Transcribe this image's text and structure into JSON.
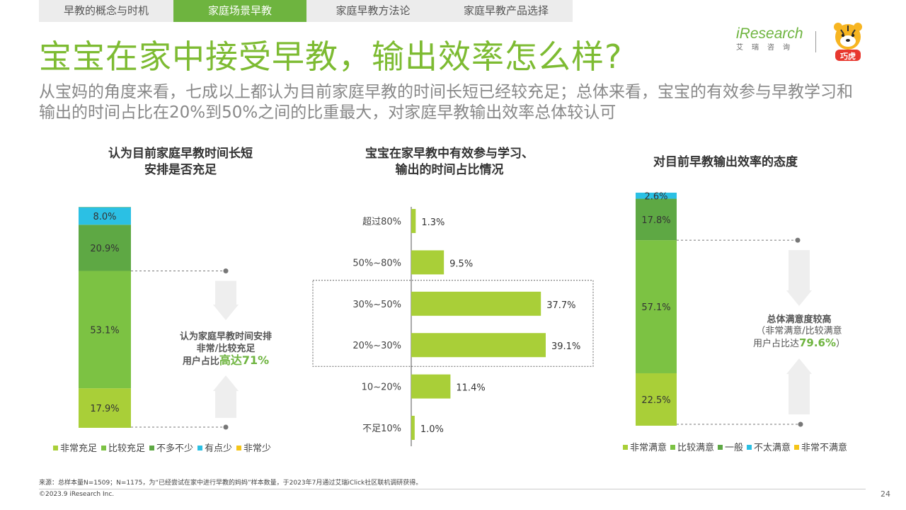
{
  "tabs": [
    {
      "label": "早教的概念与时机",
      "active": false
    },
    {
      "label": "家庭场景早教",
      "active": true
    },
    {
      "label": "家庭早教方法论",
      "active": false
    },
    {
      "label": "家庭早教产品选择",
      "active": false
    }
  ],
  "title": "宝宝在家中接受早教，输出效率怎么样?",
  "subtitle": "从宝妈的角度来看，七成以上都认为目前家庭早教的时间长短已经较充足；总体来看，宝宝的有效参与早教学习和输出的时间占比在20%到50%之间的比重最大，对家庭早教输出效率总体较认可",
  "logo": {
    "brand": "iResearch",
    "sub": "艾瑞咨询",
    "mascot_text": "巧虎"
  },
  "chart_data": [
    {
      "type": "bar",
      "title": "认为目前家庭早教时间长短安排是否充足",
      "title_lines": [
        "认为目前家庭早教时间长短",
        "安排是否充足"
      ],
      "stacked": true,
      "series": [
        {
          "name": "非常充足",
          "value": 17.9,
          "label": "17.9%",
          "color": "#a9cf38"
        },
        {
          "name": "比较充足",
          "value": 53.1,
          "label": "53.1%",
          "color": "#7cc243"
        },
        {
          "name": "不多不少",
          "value": 20.9,
          "label": "20.9%",
          "color": "#5ea844"
        },
        {
          "name": "有点少",
          "value": 8.0,
          "label": "8.0%",
          "color": "#2bc0e4"
        },
        {
          "name": "非常少",
          "value": 0.1,
          "label": "",
          "color": "#f5c518"
        }
      ],
      "annotation": {
        "line1": "认为家庭早教时间安排",
        "line2": "非常/比较充足",
        "line3_prefix": "用户占比",
        "line3_highlight": "高达71%"
      }
    },
    {
      "type": "bar",
      "orientation": "horizontal",
      "title": "宝宝在家早教中有效参与学习、输出的时间占比情况",
      "title_lines": [
        "宝宝在家早教中有效参与学习、",
        "输出的时间占比情况"
      ],
      "categories": [
        "超过80%",
        "50%~80%",
        "30%~50%",
        "20%~30%",
        "10~20%",
        "不足10%"
      ],
      "values": [
        1.3,
        9.5,
        37.7,
        39.1,
        11.4,
        1.0
      ],
      "value_labels": [
        "1.3%",
        "9.5%",
        "37.7%",
        "39.1%",
        "11.4%",
        "1.0%"
      ],
      "highlight_categories": [
        "30%~50%",
        "20%~30%"
      ],
      "color": "#a9cf38"
    },
    {
      "type": "bar",
      "title": "对目前早教输出效率的态度",
      "stacked": true,
      "series": [
        {
          "name": "非常满意",
          "value": 22.5,
          "label": "22.5%",
          "color": "#a9cf38"
        },
        {
          "name": "比较满意",
          "value": 57.1,
          "label": "57.1%",
          "color": "#7cc243"
        },
        {
          "name": "一般",
          "value": 17.8,
          "label": "17.8%",
          "color": "#5ea844"
        },
        {
          "name": "不太满意",
          "value": 2.6,
          "label": "2.6%",
          "color": "#2bc0e4"
        },
        {
          "name": "非常不满意",
          "value": 0.0,
          "label": "",
          "color": "#f5c518"
        }
      ],
      "annotation": {
        "line1": "总体满意度较高",
        "line2": "（非常满意/比较满意",
        "line3_prefix": "用户占比达",
        "line3_highlight": "79.6%",
        "line3_suffix": "）"
      }
    }
  ],
  "footer": {
    "source": "来源：总样本量N=1509；N=1175，为“已经尝试在家中进行早教的妈妈”样本数量，于2023年7月通过艾瑞iClick社区联机调研获得。",
    "copyright": "©2023.9 iResearch Inc.",
    "page": "24"
  }
}
